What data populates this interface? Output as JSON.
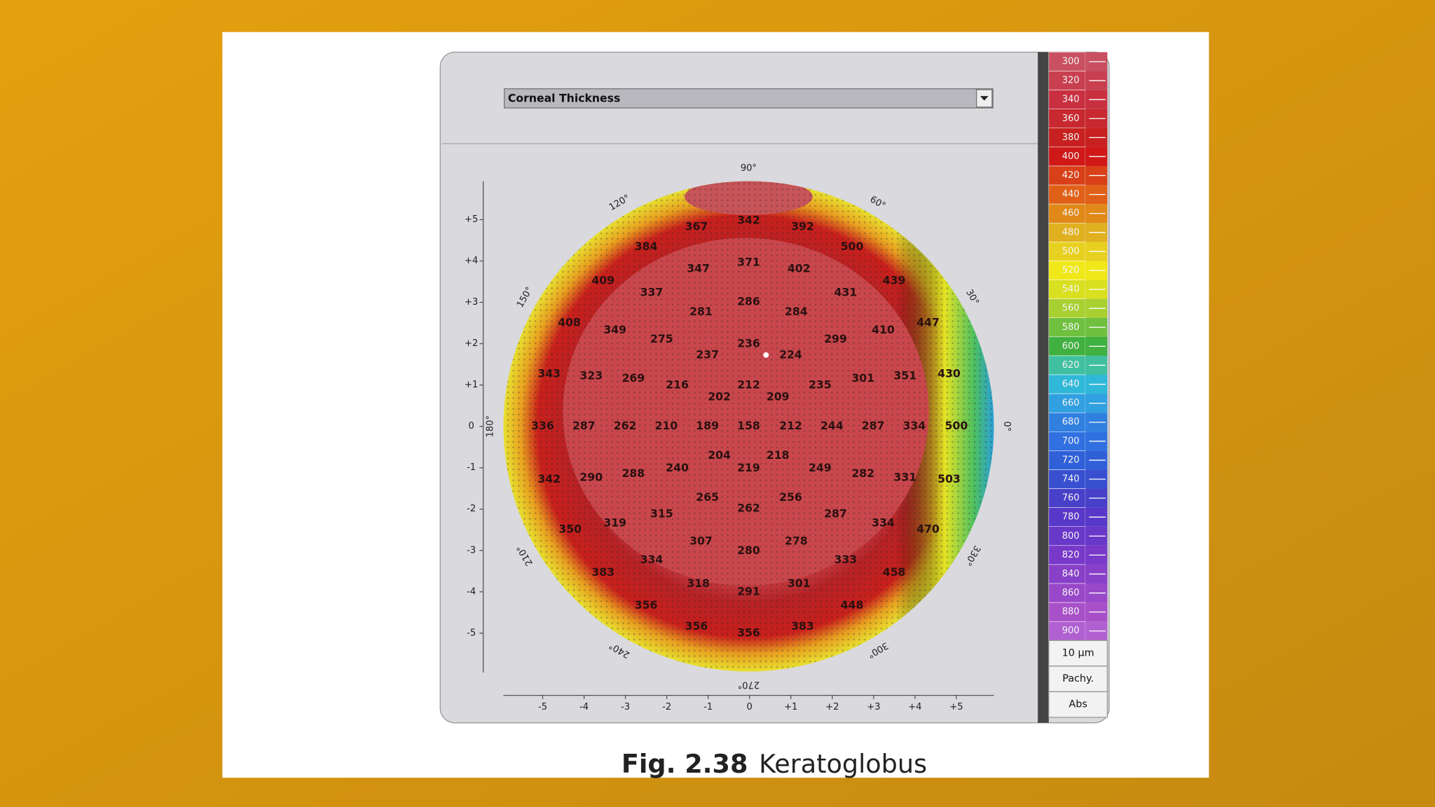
{
  "dropdown": {
    "label": "Corneal Thickness"
  },
  "map": {
    "angles": [
      "90°",
      "60°",
      "30°",
      "0°",
      "330°",
      "300°",
      "270°",
      "240°",
      "210°",
      "180°",
      "150°",
      "120°"
    ],
    "y_ticks": [
      "+5",
      "+4",
      "+3",
      "+2",
      "+1",
      "0",
      "-1",
      "-2",
      "-3",
      "-4",
      "-5"
    ],
    "x_ticks": [
      "-5",
      "-4",
      "-3",
      "-2",
      "-1",
      "0",
      "+1",
      "+2",
      "+3",
      "+4",
      "+5"
    ],
    "readings": [
      367,
      342,
      392,
      500,
      384,
      347,
      371,
      402,
      409,
      337,
      431,
      439,
      281,
      286,
      284,
      408,
      349,
      410,
      447,
      275,
      236,
      299,
      237,
      224,
      343,
      323,
      269,
      216,
      212,
      235,
      301,
      351,
      430,
      202,
      209,
      336,
      287,
      262,
      210,
      189,
      158,
      212,
      244,
      287,
      334,
      500,
      204,
      218,
      342,
      290,
      288,
      240,
      219,
      249,
      282,
      331,
      503,
      265,
      256,
      262,
      315,
      287,
      350,
      319,
      334,
      470,
      307,
      280,
      278,
      334,
      333,
      383,
      458,
      318,
      291,
      301,
      356,
      448,
      356,
      356,
      383
    ]
  },
  "scale": {
    "levels": [
      300,
      320,
      340,
      360,
      380,
      400,
      420,
      440,
      460,
      480,
      500,
      520,
      540,
      560,
      580,
      600,
      620,
      640,
      660,
      680,
      700,
      720,
      740,
      760,
      780,
      800,
      820,
      840,
      860,
      880,
      900
    ],
    "step": "10 µm",
    "mode": "Pachy.",
    "ref": "Abs"
  },
  "caption": {
    "number": "Fig. 2.38",
    "title": "Keratoglobus"
  }
}
